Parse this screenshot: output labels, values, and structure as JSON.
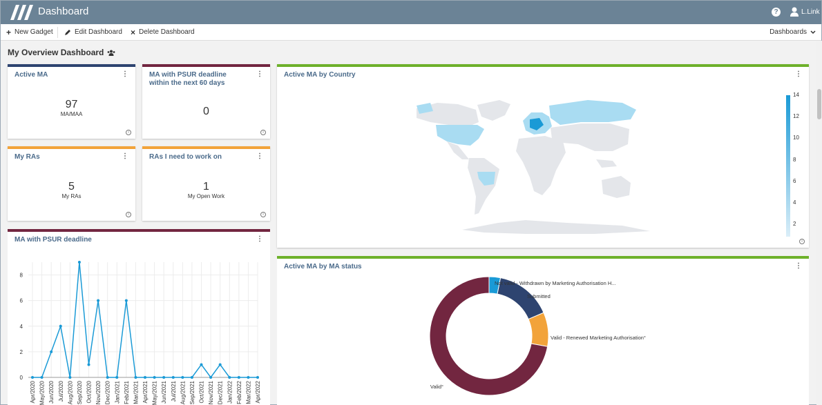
{
  "topbar": {
    "title": "Dashboard",
    "user": "L.Link",
    "help_glyph": "?"
  },
  "toolbar": {
    "new_gadget": "New Gadget",
    "edit_dashboard": "Edit Dashboard",
    "delete_dashboard": "Delete Dashboard",
    "dashboards_select": "Dashboards"
  },
  "page": {
    "title": "My Overview Dashboard"
  },
  "colors": {
    "navy": "#2e4470",
    "maroon": "#722640",
    "orange": "#f2a33a",
    "green": "#6eb12b",
    "line": "#1a9ad6",
    "topbar": "#6b8396"
  },
  "widgets": {
    "active_ma": {
      "title": "Active MA",
      "value": "97",
      "unit": "MA/MAA"
    },
    "psur_60": {
      "title_line1": "MA with PSUR deadline",
      "title_line2": "within the next 60 days",
      "value": "0"
    },
    "my_ras": {
      "title": "My RAs",
      "value": "5",
      "unit": "My RAs"
    },
    "ras_work": {
      "title": "RAs I need to work on",
      "value": "1",
      "unit": "My Open Work"
    },
    "psur_chart": {
      "title": "MA with PSUR deadline"
    },
    "map": {
      "title": "Active MA by Country",
      "legend_ticks": [
        "14",
        "12",
        "10",
        "8",
        "6",
        "4",
        "2"
      ]
    },
    "status": {
      "title": "Active MA by MA status"
    }
  },
  "chart_data": [
    {
      "type": "line",
      "x": [
        "Apr/2020",
        "May/2020",
        "Jun/2020",
        "Jul/2020",
        "Aug/2020",
        "Sep/2020",
        "Oct/2020",
        "Nov/2020",
        "Dec/2020",
        "Jan/2021",
        "Feb/2021",
        "Mar/2021",
        "Apr/2021",
        "May/2021",
        "Jun/2021",
        "Jul/2021",
        "Aug/2021",
        "Sep/2021",
        "Oct/2021",
        "Nov/2021",
        "Dec/2021",
        "Jan/2022",
        "Feb/2022",
        "Mar/2022",
        "Apr/2022"
      ],
      "values": [
        0,
        0,
        2,
        4,
        0,
        9,
        1,
        6,
        0,
        0,
        6,
        0,
        0,
        0,
        0,
        0,
        0,
        0,
        1,
        0,
        1,
        0,
        0,
        0,
        0
      ],
      "ylim": [
        0,
        9
      ],
      "yticks": [
        "0",
        "2",
        "4",
        "6",
        "8"
      ],
      "grid": true
    },
    {
      "type": "pie",
      "labels": [
        "Not valid - Withdrawn by Marketing Authorisation H...",
        "Submitted",
        "Valid - Renewed Marketing Authorisation°",
        "Valid°"
      ],
      "values": [
        3,
        15,
        9,
        70
      ],
      "colors": [
        "#1a9ad6",
        "#2e4470",
        "#f2a33a",
        "#722640"
      ]
    }
  ]
}
